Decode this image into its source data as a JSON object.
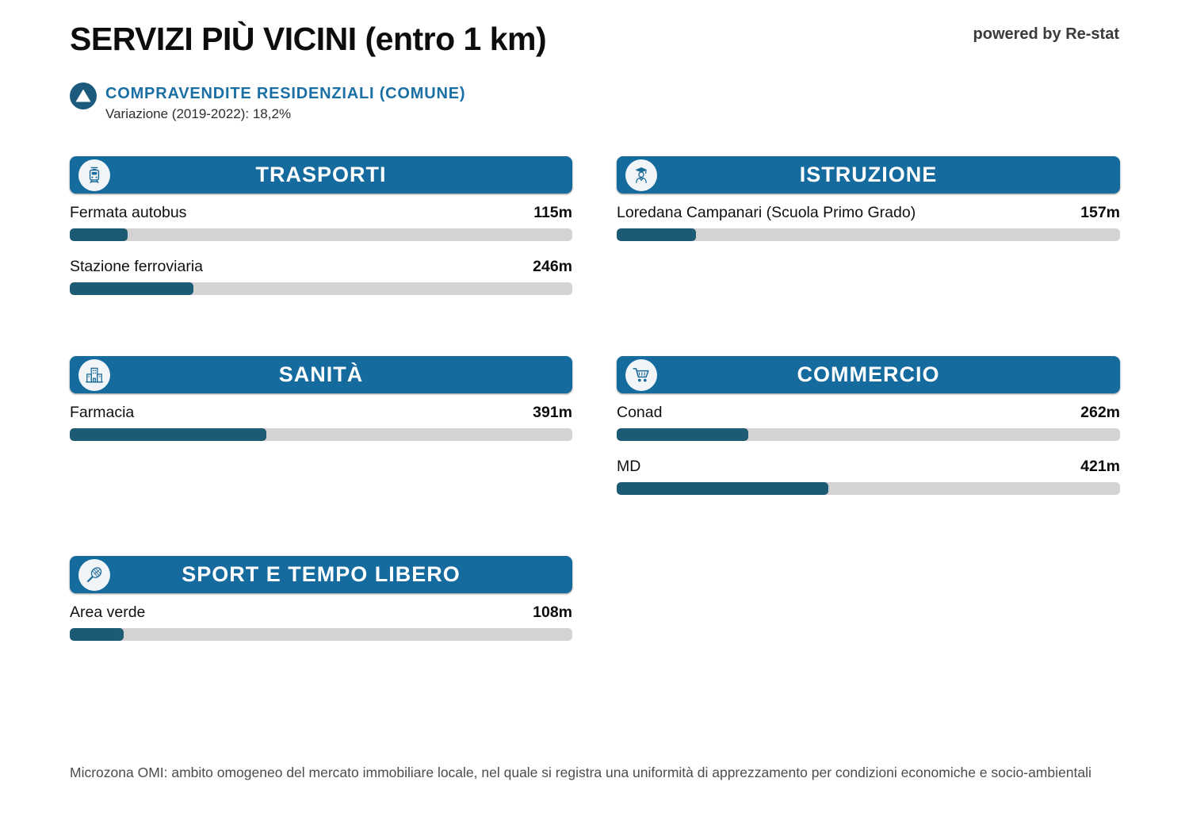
{
  "header": {
    "title": "SERVIZI PIÙ VICINI (entro 1 km)",
    "powered_by": "powered by Re-stat"
  },
  "context": {
    "label": "COMPRAVENDITE RESIDENZIALI (COMUNE)",
    "variation": "Variazione (2019-2022): 18,2%",
    "icon": "up-arrow-icon"
  },
  "chart_data": {
    "type": "bar",
    "title": "SERVIZI PIÙ VICINI (entro 1 km)",
    "unit": "m",
    "max_value": 1000,
    "xlim": [
      0,
      1000
    ],
    "groups": [
      {
        "name": "TRASPORTI",
        "icon": "train-icon",
        "items": [
          {
            "label": "Fermata autobus",
            "display": "115m",
            "value": 115
          },
          {
            "label": "Stazione ferroviaria",
            "display": "246m",
            "value": 246
          }
        ]
      },
      {
        "name": "ISTRUZIONE",
        "icon": "graduate-icon",
        "items": [
          {
            "label": "Loredana Campanari (Scuola Primo Grado)",
            "display": "157m",
            "value": 157
          }
        ]
      },
      {
        "name": "SANITÀ",
        "icon": "hospital-icon",
        "items": [
          {
            "label": "Farmacia",
            "display": "391m",
            "value": 391
          }
        ]
      },
      {
        "name": "COMMERCIO",
        "icon": "cart-icon",
        "items": [
          {
            "label": "Conad",
            "display": "262m",
            "value": 262
          },
          {
            "label": "MD",
            "display": "421m",
            "value": 421
          }
        ]
      },
      {
        "name": "SPORT E TEMPO LIBERO",
        "icon": "racket-icon",
        "items": [
          {
            "label": "Area verde",
            "display": "108m",
            "value": 108
          }
        ]
      }
    ]
  },
  "footer": {
    "note": "Microzona OMI: ambito omogeneo del mercato immobiliare locale, nel quale si registra una uniformità di apprezzamento per condizioni economiche e socio-ambientali"
  },
  "colors": {
    "header_blue": "#156a9e",
    "bar_fill": "#1d5a74",
    "bar_track": "#d3d3d3",
    "context_circle": "#1b5a7d",
    "context_label": "#1a6fa4",
    "icon_glyph": "#1a6a9a"
  }
}
